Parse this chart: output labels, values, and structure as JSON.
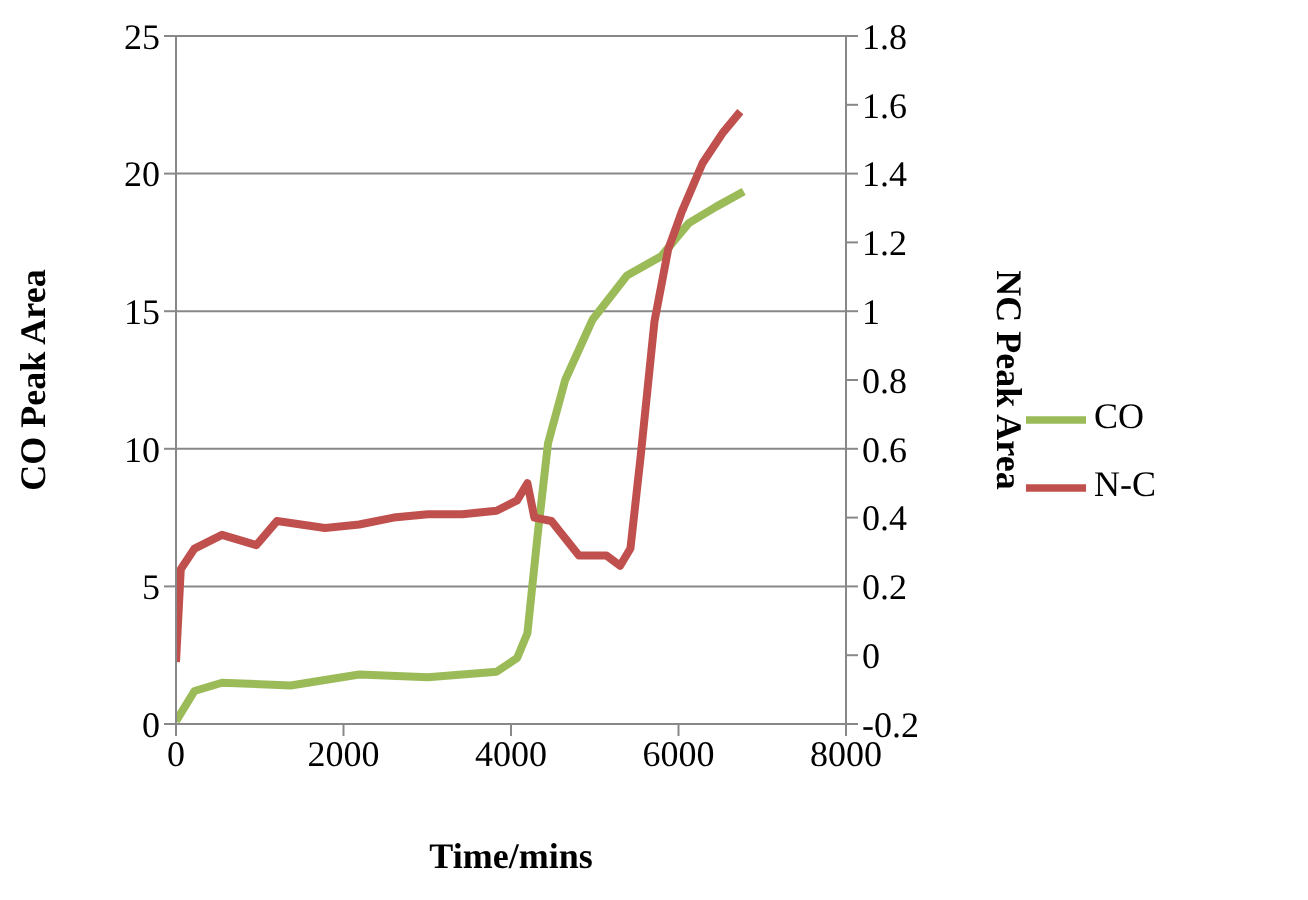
{
  "chart_data": {
    "type": "line",
    "xlabel": "Time/mins",
    "ylabel": "CO Peak Area",
    "y2label": "NC Peak Area",
    "xlim": [
      0,
      8000
    ],
    "xticks": [
      0,
      2000,
      4000,
      6000,
      8000
    ],
    "ylim": [
      0,
      25
    ],
    "yticks": [
      0,
      5,
      10,
      15,
      20,
      25
    ],
    "y2lim": [
      -0.2,
      1.8
    ],
    "y2ticks": [
      -0.2,
      0,
      0.2,
      0.4,
      0.6,
      0.8,
      1,
      1.2,
      1.4,
      1.6,
      1.8
    ],
    "grid": "y",
    "legend": "right",
    "marker": "none",
    "line_style": "solid",
    "series": [
      {
        "name": "CO",
        "color": "#9bbb59",
        "x": [
          0,
          221,
          549,
          1369,
          2188,
          3008,
          3828,
          4073,
          4196,
          4319,
          4442,
          4647,
          4975,
          5385,
          5795,
          6123,
          6451,
          6779
        ],
        "values": [
          0.1,
          1.2,
          1.5,
          1.4,
          1.8,
          1.7,
          1.9,
          2.4,
          3.3,
          6.9,
          10.2,
          12.5,
          14.7,
          16.3,
          17,
          18.2,
          18.8,
          19.35
        ]
      },
      {
        "name": "N-C",
        "color": "#c0504d",
        "axis": "y2",
        "x": [
          0,
          57,
          221,
          549,
          959,
          1205,
          1779,
          2188,
          2598,
          3008,
          3418,
          3828,
          4073,
          4196,
          4279,
          4483,
          4811,
          5139,
          5303,
          5426,
          5549,
          5713,
          5877,
          6041,
          6287,
          6533,
          6738
        ],
        "values": [
          -0.02,
          0.25,
          0.31,
          0.35,
          0.32,
          0.39,
          0.37,
          0.38,
          0.4,
          0.41,
          0.41,
          0.42,
          0.45,
          0.5,
          0.4,
          0.39,
          0.29,
          0.29,
          0.26,
          0.31,
          0.58,
          0.97,
          1.18,
          1.29,
          1.43,
          1.52,
          1.58
        ]
      }
    ]
  }
}
